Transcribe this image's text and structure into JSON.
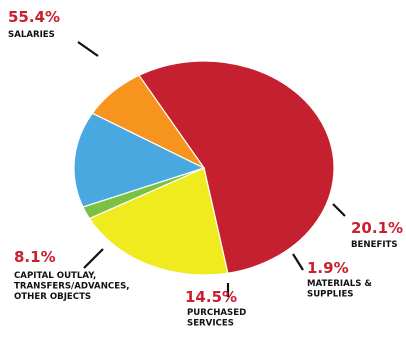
{
  "chart_data": {
    "type": "pie",
    "title": "",
    "slices": [
      {
        "label": "SALARIES",
        "value": 55.4,
        "display": "55.4%",
        "label_lines": [
          "SALARIES"
        ],
        "color": "#c4202f"
      },
      {
        "label": "BENEFITS",
        "value": 20.1,
        "display": "20.1%",
        "label_lines": [
          "BENEFITS"
        ],
        "color": "#f0eb1e"
      },
      {
        "label": "MATERIALS & SUPPLIES",
        "value": 1.9,
        "display": "1.9%",
        "label_lines": [
          "MATERIALS &",
          "SUPPLIES"
        ],
        "color": "#7cc242"
      },
      {
        "label": "PURCHASED SERVICES",
        "value": 14.5,
        "display": "14.5%",
        "label_lines": [
          "PURCHASED",
          "SERVICES"
        ],
        "color": "#4aa8e0"
      },
      {
        "label": "CAPITAL OUTLAY, TRANSFERS/ADVANCES, OTHER OBJECTS",
        "value": 8.1,
        "display": "8.1%",
        "label_lines": [
          "CAPITAL OUTLAY,",
          "TRANSFERS/ADVANCES,",
          "OTHER OBJECTS"
        ],
        "color": "#f7941d"
      }
    ],
    "start_slice_boundary_deg": 240,
    "direction": "clockwise",
    "legend": "none",
    "label_color": "#c8202f"
  }
}
